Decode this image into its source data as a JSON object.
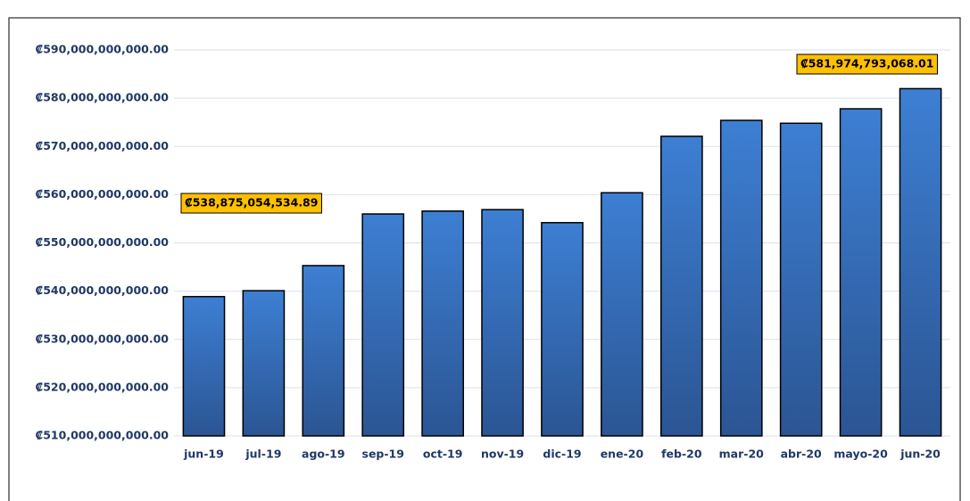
{
  "chart_data": {
    "type": "bar",
    "categories": [
      "jun-19",
      "jul-19",
      "ago-19",
      "sep-19",
      "oct-19",
      "nov-19",
      "dic-19",
      "ene-20",
      "feb-20",
      "mar-20",
      "abr-20",
      "mayo-20",
      "jun-20"
    ],
    "values": [
      538875054534.89,
      540100000000,
      545300000000,
      556000000000,
      556600000000,
      556900000000,
      554200000000,
      560400000000,
      572100000000,
      575400000000,
      574800000000,
      577800000000,
      581974793068.01
    ],
    "value_labels": [
      "₡538,875,054,534.89",
      null,
      null,
      null,
      null,
      null,
      null,
      null,
      null,
      null,
      null,
      null,
      "₡581,974,793,068.01"
    ],
    "color": "#3d7fd3",
    "ylim": [
      510000000000,
      590000000000
    ],
    "yticks": [
      {
        "value": 510000000000,
        "label": "₡510,000,000,000.00"
      },
      {
        "value": 520000000000,
        "label": "₡520,000,000,000.00"
      },
      {
        "value": 530000000000,
        "label": "₡530,000,000,000.00"
      },
      {
        "value": 540000000000,
        "label": "₡540,000,000,000.00"
      },
      {
        "value": 550000000000,
        "label": "₡550,000,000,000.00"
      },
      {
        "value": 560000000000,
        "label": "₡560,000,000,000.00"
      },
      {
        "value": 570000000000,
        "label": "₡570,000,000,000.00"
      },
      {
        "value": 580000000000,
        "label": "₡580,000,000,000.00"
      },
      {
        "value": 590000000000,
        "label": "₡590,000,000,000.00"
      }
    ],
    "grid": true
  }
}
